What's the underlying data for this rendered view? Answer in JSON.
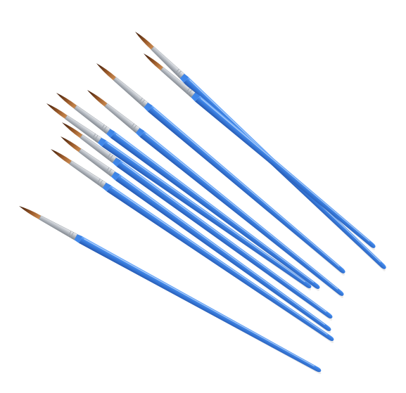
{
  "scene": {
    "subject": "paintbrushes",
    "count": 10,
    "colors": {
      "background": "#ffffff",
      "handle": "#3f86e8",
      "handle_dark": "#2c66c4",
      "handle_light": "#79b3ff",
      "ferrule": "#c9cdd3",
      "ferrule_dark": "#8a9097",
      "bristle_tip": "#5a2a10",
      "bristle_mid": "#b06a32"
    }
  }
}
